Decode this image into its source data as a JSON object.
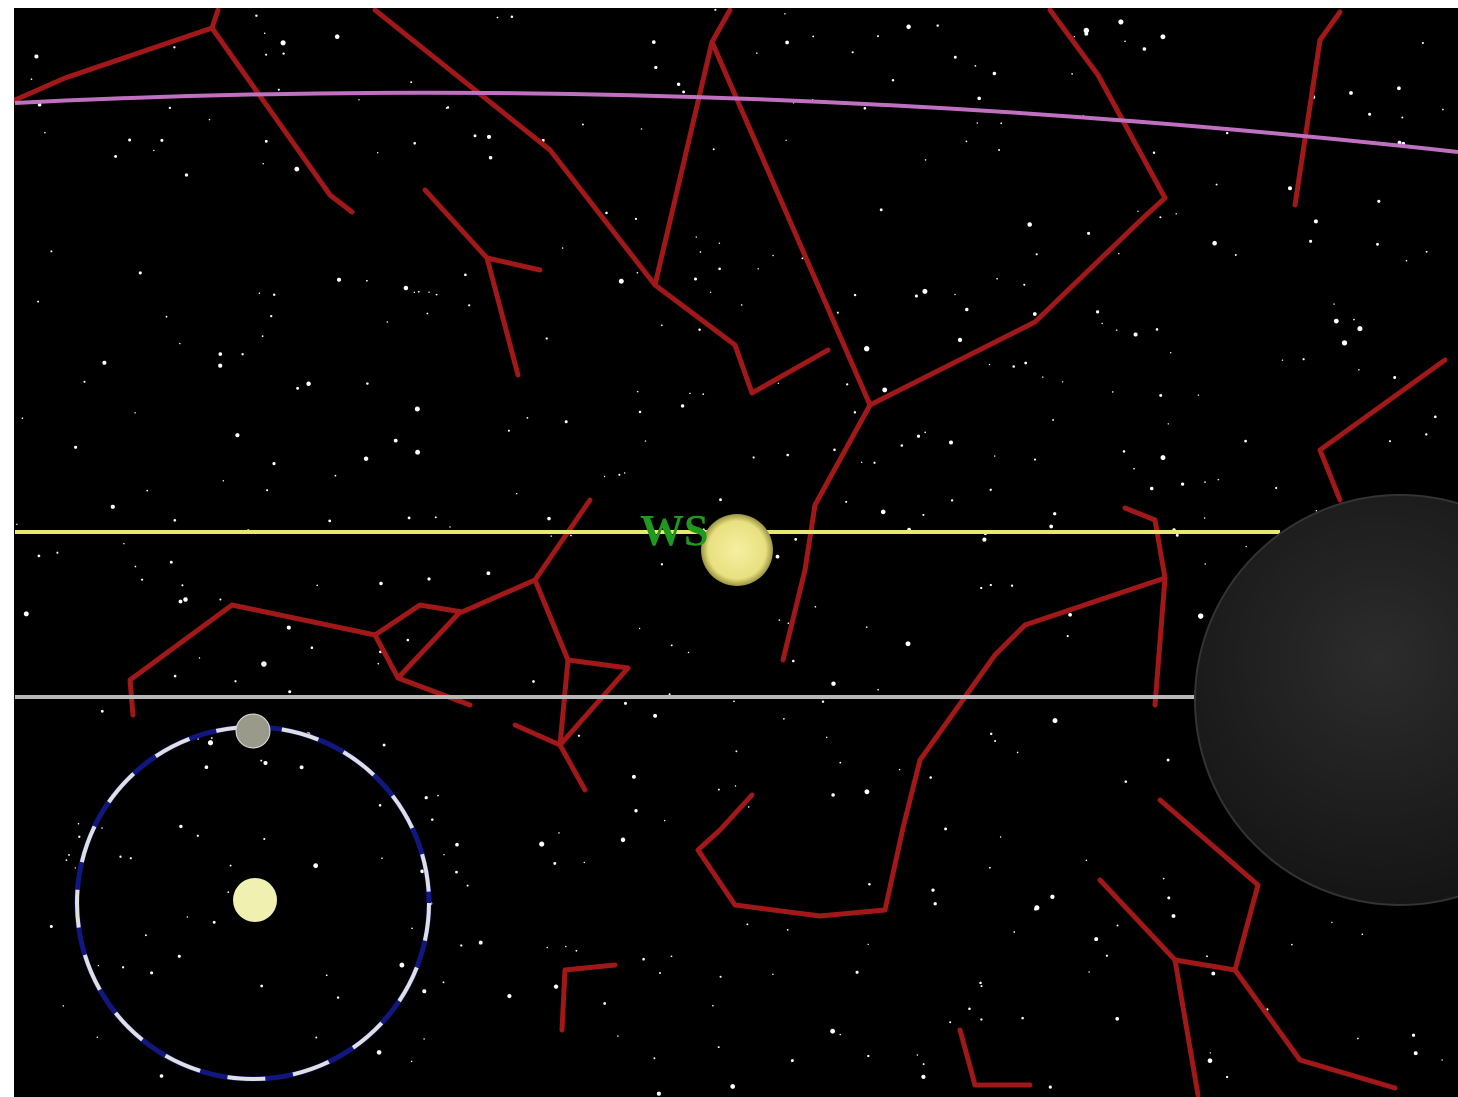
{
  "label": "WS"
}
